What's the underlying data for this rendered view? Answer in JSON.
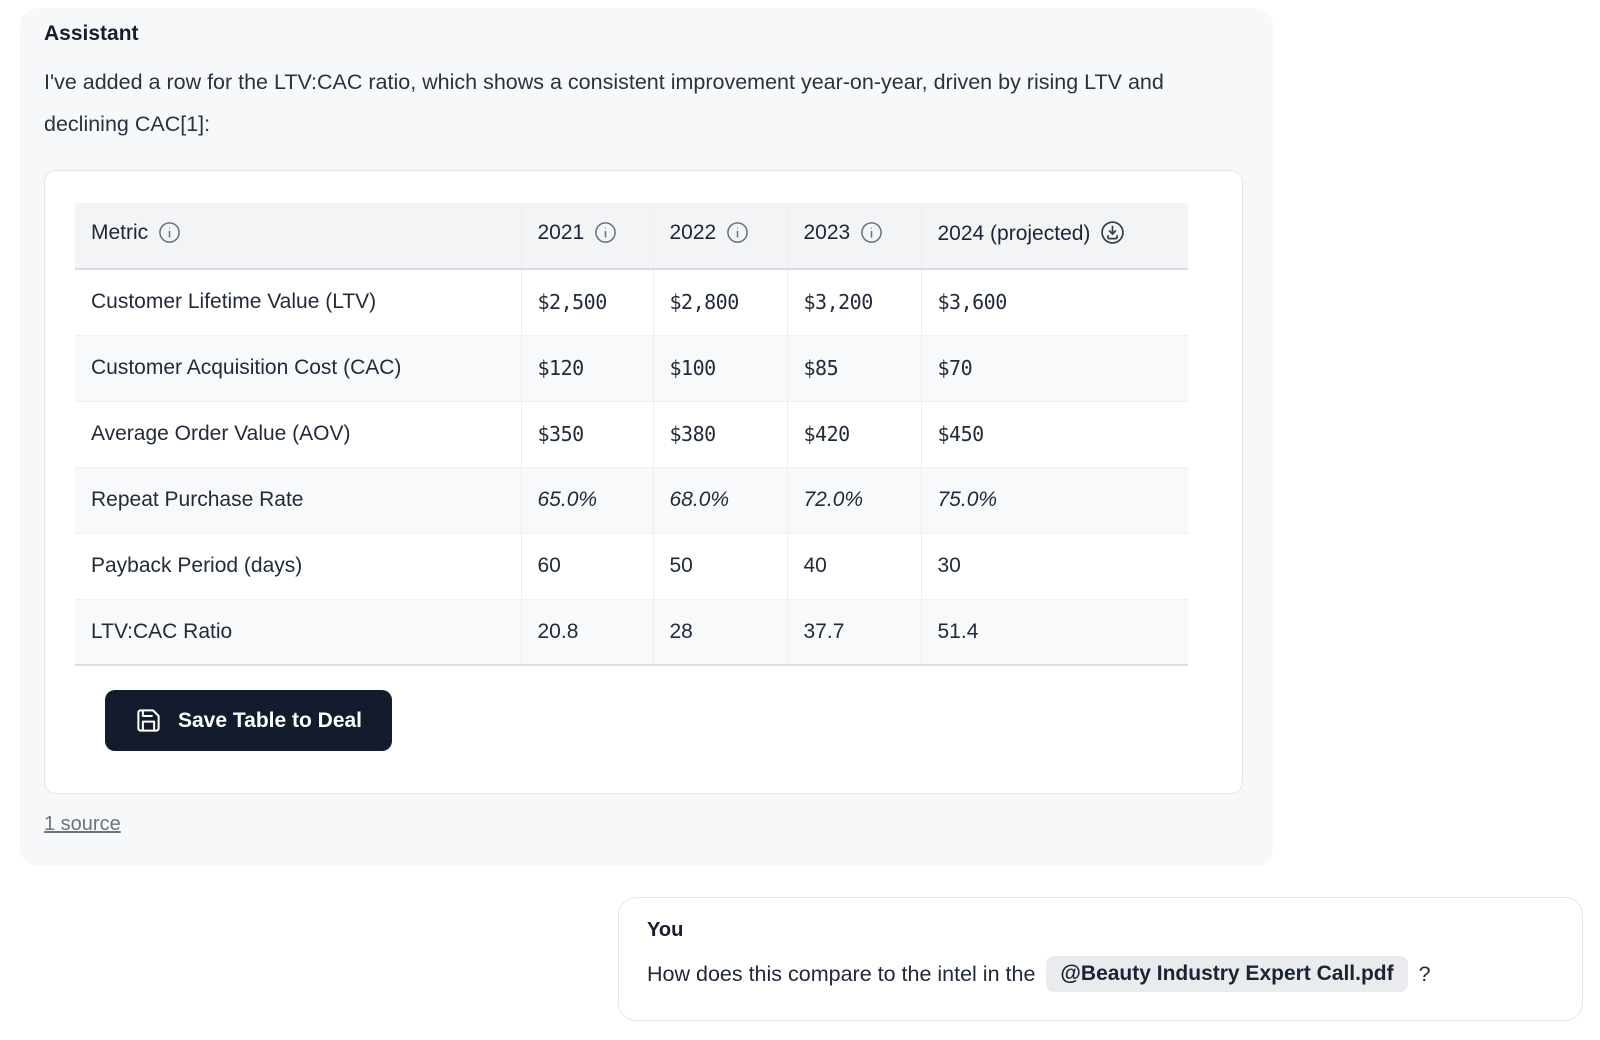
{
  "assistant": {
    "role_label": "Assistant",
    "message": "I've added a row for the LTV:CAC ratio, which shows a consistent improvement year-on-year, driven by rising LTV and declining CAC[1]:",
    "save_button_label": "Save Table to Deal",
    "save_button_icon": "floppy-disk",
    "sources_label": "1 source"
  },
  "table": {
    "columns": [
      {
        "label": "Metric",
        "icon": "info"
      },
      {
        "label": "2021",
        "icon": "info"
      },
      {
        "label": "2022",
        "icon": "info"
      },
      {
        "label": "2023",
        "icon": "info"
      },
      {
        "label": "2024 (projected)",
        "icon": "download"
      }
    ],
    "rows": [
      {
        "metric": "Customer Lifetime Value (LTV)",
        "values": [
          "$2,500",
          "$2,800",
          "$3,200",
          "$3,600"
        ],
        "value_style": "mono"
      },
      {
        "metric": "Customer Acquisition Cost (CAC)",
        "values": [
          "$120",
          "$100",
          "$85",
          "$70"
        ],
        "value_style": "mono"
      },
      {
        "metric": "Average Order Value (AOV)",
        "values": [
          "$350",
          "$380",
          "$420",
          "$450"
        ],
        "value_style": "mono"
      },
      {
        "metric": "Repeat Purchase Rate",
        "values": [
          "65.0%",
          "68.0%",
          "72.0%",
          "75.0%"
        ],
        "value_style": "italic"
      },
      {
        "metric": "Payback Period (days)",
        "values": [
          "60",
          "50",
          "40",
          "30"
        ],
        "value_style": "plain"
      },
      {
        "metric": "LTV:CAC Ratio",
        "values": [
          "20.8",
          "28",
          "37.7",
          "51.4"
        ],
        "value_style": "plain"
      }
    ]
  },
  "user": {
    "role_label": "You",
    "message_prefix": "How does this compare to the intel in the",
    "attachment_chip": "@Beauty Industry Expert Call.pdf",
    "message_suffix": "?"
  },
  "colors": {
    "assistant_card_bg": "#f7f8fa",
    "table_header_bg": "#f3f4f6",
    "table_alt_row_bg": "#f8f9fb",
    "save_button_bg": "#141b2d",
    "chip_bg": "#e9ebef",
    "text_dark": "#1d2636",
    "muted_link": "#6b7280"
  }
}
